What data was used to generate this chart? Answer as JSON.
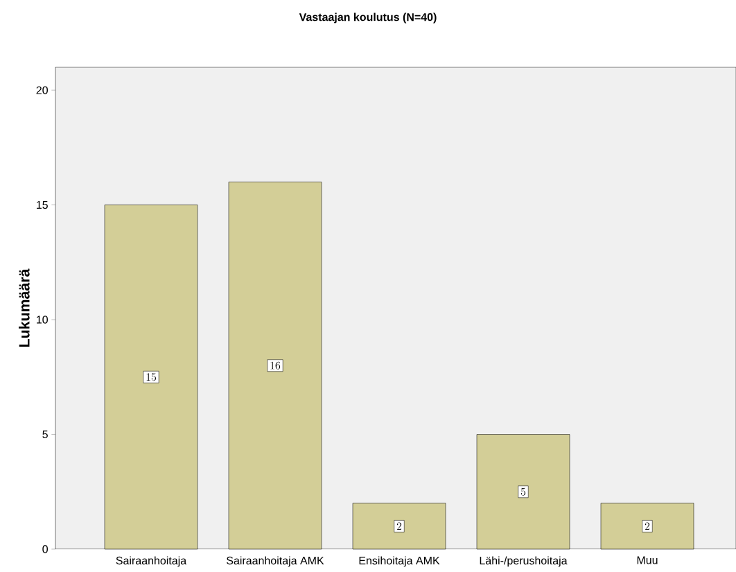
{
  "chart_data": {
    "type": "bar",
    "title": "Vastaajan koulutus (N=40)",
    "ylabel": "Lukumäärä",
    "categories": [
      "Sairaanhoitaja",
      "Sairaanhoitaja AMK",
      "Ensihoitaja AMK",
      "Lähi-/perushoitaja",
      "Muu"
    ],
    "values": [
      15,
      16,
      2,
      5,
      2
    ],
    "color": "#d3ce97",
    "ylim": [
      0,
      21
    ],
    "yticks": [
      0,
      5,
      10,
      15,
      20
    ],
    "data_labels": true
  }
}
